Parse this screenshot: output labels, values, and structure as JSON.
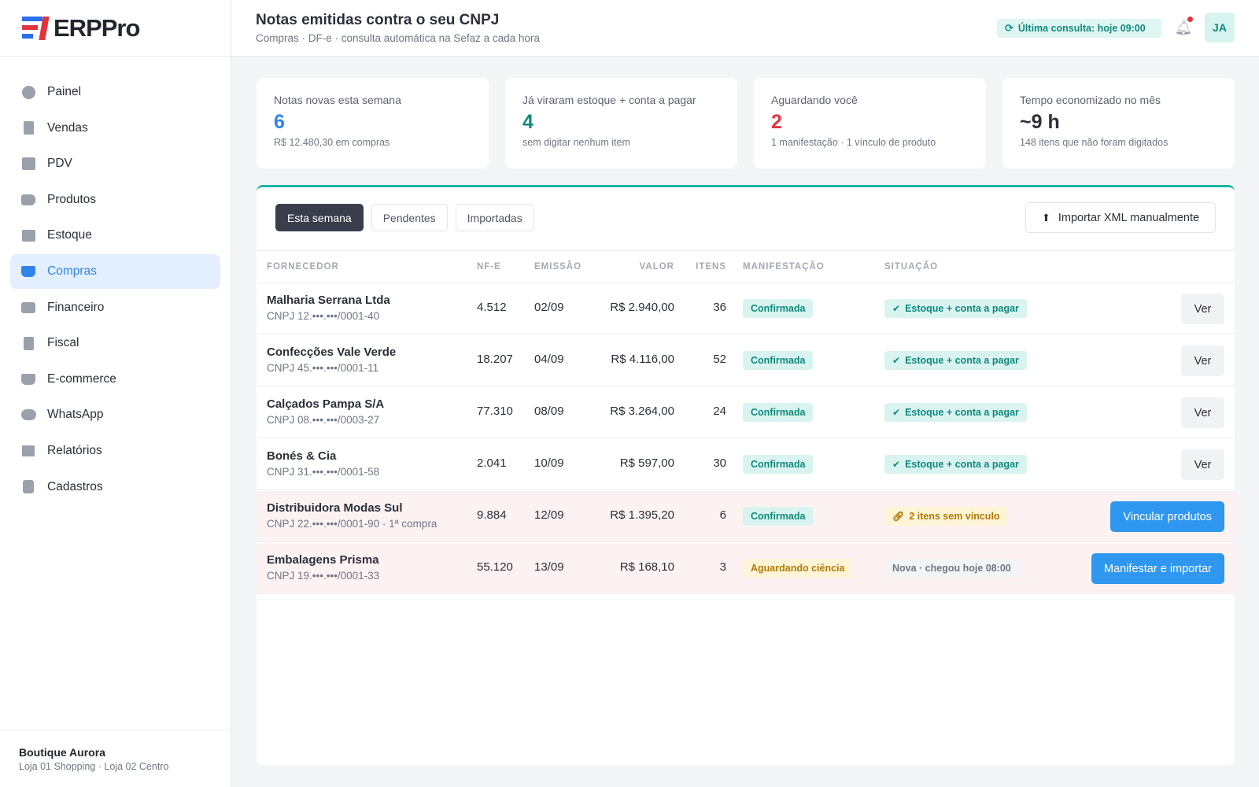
{
  "brand": {
    "name": "ERPPro"
  },
  "sidebar": {
    "items": [
      {
        "label": "Painel",
        "icon": "pie-chart-icon"
      },
      {
        "label": "Vendas",
        "icon": "receipt-icon"
      },
      {
        "label": "PDV",
        "icon": "cash-register-icon"
      },
      {
        "label": "Produtos",
        "icon": "tags-icon"
      },
      {
        "label": "Estoque",
        "icon": "boxes-icon"
      },
      {
        "label": "Compras",
        "icon": "truck-cart-icon",
        "active": true
      },
      {
        "label": "Financeiro",
        "icon": "wallet-icon"
      },
      {
        "label": "Fiscal",
        "icon": "document-icon"
      },
      {
        "label": "E-commerce",
        "icon": "cart-icon"
      },
      {
        "label": "WhatsApp",
        "icon": "chat-icon"
      },
      {
        "label": "Relatórios",
        "icon": "bar-chart-icon"
      },
      {
        "label": "Cadastros",
        "icon": "contact-card-icon"
      }
    ],
    "store": {
      "name": "Boutique Aurora",
      "sub": "Loja 01 Shopping · Loja 02 Centro"
    }
  },
  "header": {
    "title": "Notas emitidas contra o seu CNPJ",
    "subtitle": "Compras · DF-e · consulta automática na Sefaz a cada hora",
    "last_check": "Última consulta: hoje 09:00",
    "avatar_initials": "JA"
  },
  "stats": [
    {
      "label": "Notas novas esta semana",
      "value": "6",
      "sub": "R$ 12.480,30 em compras",
      "color": "#2f84e8"
    },
    {
      "label": "Já viraram estoque + conta a pagar",
      "value": "4",
      "sub": "sem digitar nenhum item",
      "color": "#0f8a7c"
    },
    {
      "label": "Aguardando você",
      "value": "2",
      "sub": "1 manifestação · 1 vínculo de produto",
      "color": "#e2343f"
    },
    {
      "label": "Tempo economizado no mês",
      "value": "~9 h",
      "sub": "148 itens que não foram digitados",
      "color": "#2b2f3a"
    }
  ],
  "filters": [
    "Esta semana",
    "Pendentes",
    "Importadas"
  ],
  "import_button": "Importar XML manualmente",
  "table": {
    "headers": {
      "fornecedor": "FORNECEDOR",
      "nfe": "NF-E",
      "emissao": "EMISSÃO",
      "valor": "VALOR",
      "itens": "ITENS",
      "manifestacao": "MANIFESTAÇÃO",
      "situacao": "SITUAÇÃO"
    },
    "rows": [
      {
        "fornecedor": "Malharia Serrana Ltda",
        "cnpj": "CNPJ 12.•••.•••/0001-40",
        "nfe": "4.512",
        "emissao": "02/09",
        "valor": "R$ 2.940,00",
        "itens": "36",
        "manifestacao": "Confirmada",
        "situacao": "Estoque + conta a pagar",
        "action": "Ver"
      },
      {
        "fornecedor": "Confecções Vale Verde",
        "cnpj": "CNPJ 45.•••.•••/0001-11",
        "nfe": "18.207",
        "emissao": "04/09",
        "valor": "R$ 4.116,00",
        "itens": "52",
        "manifestacao": "Confirmada",
        "situacao": "Estoque + conta a pagar",
        "action": "Ver"
      },
      {
        "fornecedor": "Calçados Pampa S/A",
        "cnpj": "CNPJ 08.•••.•••/0003-27",
        "nfe": "77.310",
        "emissao": "08/09",
        "valor": "R$ 3.264,00",
        "itens": "24",
        "manifestacao": "Confirmada",
        "situacao": "Estoque + conta a pagar",
        "action": "Ver"
      },
      {
        "fornecedor": "Bonés & Cia",
        "cnpj": "CNPJ 31.•••.•••/0001-58",
        "nfe": "2.041",
        "emissao": "10/09",
        "valor": "R$ 597,00",
        "itens": "30",
        "manifestacao": "Confirmada",
        "situacao": "Estoque + conta a pagar",
        "action": "Ver"
      },
      {
        "fornecedor": "Distribuidora Modas Sul",
        "cnpj": "CNPJ 22.•••.•••/0001-90 · 1ª compra",
        "nfe": "9.884",
        "emissao": "12/09",
        "valor": "R$ 1.395,20",
        "itens": "6",
        "manifestacao": "Confirmada",
        "situacao": "2 itens sem vínculo",
        "action": "Vincular produtos"
      },
      {
        "fornecedor": "Embalagens Prisma",
        "cnpj": "CNPJ 19.•••.•••/0001-33",
        "nfe": "55.120",
        "emissao": "13/09",
        "valor": "R$ 168,10",
        "itens": "3",
        "manifestacao": "Aguardando ciência",
        "situacao": "Nova · chegou hoje 08:00",
        "action": "Manifestar e importar"
      }
    ]
  }
}
